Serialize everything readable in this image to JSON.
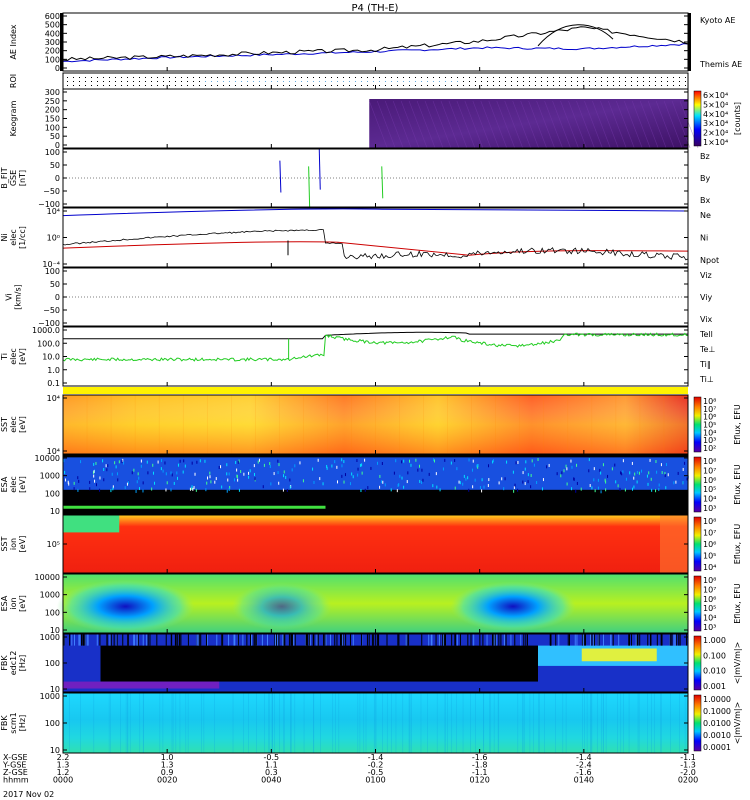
{
  "title": "P4 (TH-E)",
  "footer": {
    "rows": [
      "X-GSE",
      "Y-GSE",
      "Z-GSE",
      "hhmm"
    ],
    "values": [
      [
        "2.2",
        "1.0",
        "-0.5",
        "-1.4",
        "-1.6",
        "-1.4",
        "-1.1"
      ],
      [
        "1.3",
        "1.3",
        "1.1",
        "-0.2",
        "-1.8",
        "-2.4",
        "-1.3"
      ],
      [
        "1.2",
        "0.9",
        "0.3",
        "-0.5",
        "-1.1",
        "-1.6",
        "-2.0"
      ],
      [
        "0000",
        "0020",
        "0040",
        "0100",
        "0120",
        "0140",
        "0200"
      ]
    ],
    "date": "2017 Nov 02"
  },
  "colors": {
    "red": "#cc0000",
    "green": "#22cc22",
    "blue": "#0000cc",
    "black": "#000000"
  },
  "panels": [
    {
      "id": "ae",
      "ylabel": "AE Index",
      "yticks": [
        "600",
        "500",
        "400",
        "300",
        "200",
        "100",
        "0"
      ],
      "legend": [
        {
          "text": "Kyoto AE",
          "color": "#0000cc"
        },
        {
          "text": "Themis AE",
          "color": "#000000"
        }
      ]
    },
    {
      "id": "roi",
      "ylabel": "ROI",
      "yticks": []
    },
    {
      "id": "keogram",
      "ylabel": "Keogram",
      "yticks": [
        "300",
        "250",
        "200",
        "150",
        "100",
        "50",
        "0"
      ],
      "cbar_ticks": [
        "6×10⁴",
        "5×10⁴",
        "4×10⁴",
        "3×10⁴",
        "2×10⁴",
        "1×10⁴"
      ],
      "cbar_label": "[counts]"
    },
    {
      "id": "bfit",
      "ylabel": "B_FIT\nGSE\n[nT]",
      "yticks": [
        "100",
        "50",
        "0",
        "−50",
        "−100"
      ],
      "legend": [
        {
          "text": "Bz",
          "color": "#cc0000"
        },
        {
          "text": "By",
          "color": "#22cc22"
        },
        {
          "text": "Bx",
          "color": "#0000cc"
        }
      ]
    },
    {
      "id": "ni",
      "ylabel": "Ni\nelec\n[1/cc]",
      "yticks": [
        "10⁴",
        "10⁰",
        "10⁻⁴"
      ],
      "legend": [
        {
          "text": "Ne",
          "color": "#cc0000"
        },
        {
          "text": "Ni",
          "color": "#000000"
        },
        {
          "text": "Npot",
          "color": "#0000cc"
        }
      ]
    },
    {
      "id": "vi",
      "ylabel": "Vi\n[km/s]",
      "yticks": [
        "100",
        "50",
        "0",
        "−50",
        "−100"
      ],
      "legend": [
        {
          "text": "Viz",
          "color": "#cc0000"
        },
        {
          "text": "Viy",
          "color": "#22cc22"
        },
        {
          "text": "Vix",
          "color": "#0000cc"
        }
      ]
    },
    {
      "id": "ti",
      "ylabel": "Ti\nelec\n[eV]",
      "yticks": [
        "1000.0",
        "100.0",
        "10.0",
        "1.0",
        "0.1"
      ],
      "legend": [
        {
          "text": "Tell",
          "color": "#000000"
        },
        {
          "text": "Te⊥",
          "color": "#cc0000"
        },
        {
          "text": "Ti‖",
          "color": "#22cc22"
        },
        {
          "text": "Ti⊥",
          "color": "#0000cc"
        }
      ]
    },
    {
      "id": "sst_e",
      "ylabel": "SST\nelec\n[eV]",
      "yticks": [
        "10⁴",
        "10⁴"
      ],
      "cbar_ticks": [
        "10⁸",
        "10⁷",
        "10⁶",
        "10⁵",
        "10⁴",
        "10³",
        "10²"
      ],
      "cbar_label": "Eflux, EFU"
    },
    {
      "id": "esa_e",
      "ylabel": "ESA\nelec\n[eV]",
      "yticks": [
        "10000",
        "1000",
        "100",
        "10"
      ],
      "cbar_ticks": [
        "10⁸",
        "10⁷",
        "10⁶",
        "10⁵",
        "10⁴",
        "10³"
      ],
      "cbar_label": "Eflux, EFU"
    },
    {
      "id": "sst_i",
      "ylabel": "SST\nion\n[eV]",
      "yticks": [
        "10⁵"
      ],
      "cbar_ticks": [
        "10⁸",
        "10⁷",
        "10⁶",
        "10⁵",
        "10⁴"
      ],
      "cbar_label": "Eflux, EFU"
    },
    {
      "id": "esa_i",
      "ylabel": "ESA\nion\n[eV]",
      "yticks": [
        "10000",
        "1000",
        "100",
        "10"
      ],
      "cbar_ticks": [
        "10⁸",
        "10⁷",
        "10⁶",
        "10⁵",
        "10⁴",
        "10³"
      ],
      "cbar_label": "Eflux, EFU"
    },
    {
      "id": "fbk_e",
      "ylabel": "FBK\nedc12\n[Hz]",
      "yticks": [
        "1000",
        "100",
        "10"
      ],
      "cbar_ticks": [
        "1.000",
        "0.100",
        "0.010",
        "0.001"
      ],
      "cbar_label": "<|mV/m|>"
    },
    {
      "id": "fbk_s",
      "ylabel": "FBK\nscm1\n[Hz]",
      "yticks": [
        "1000",
        "100",
        "10"
      ],
      "cbar_ticks": [
        "1.0000",
        "0.1000",
        "0.0100",
        "0.0010",
        "0.0001"
      ],
      "cbar_label": "<|mV/m|>"
    }
  ],
  "chart_data": {
    "type": "line",
    "title": "P4 (TH-E)",
    "x": [
      "0000",
      "0020",
      "0040",
      "0100",
      "0120",
      "0140",
      "0200"
    ],
    "xlabel": "hhmm",
    "series": [
      {
        "name": "Themis AE",
        "panel": "ae",
        "values": [
          120,
          150,
          190,
          220,
          310,
          450,
          300
        ]
      },
      {
        "name": "Kyoto AE",
        "panel": "ae",
        "values": [
          100,
          140,
          170,
          200,
          240,
          230,
          280
        ]
      }
    ]
  }
}
